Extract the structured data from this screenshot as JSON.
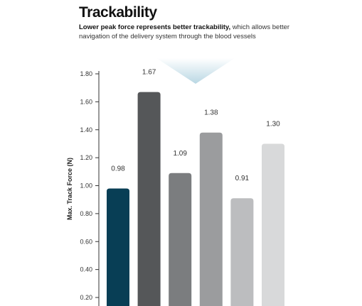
{
  "header": {
    "title": "Trackability",
    "subtitle_bold": "Lower peak force represents better trackability,",
    "subtitle_rest": " which allows better navigation of the delivery system through the blood vessels"
  },
  "chart_data": {
    "type": "bar",
    "title": "Trackability",
    "ylabel": "Max. Track Force (N)",
    "ylim": [
      0.2,
      1.8
    ],
    "yticks": [
      "0.20",
      "0.40",
      "0.60",
      "0.80",
      "1.00",
      "1.20",
      "1.40",
      "1.60",
      "1.80"
    ],
    "values": [
      0.98,
      1.67,
      1.09,
      1.38,
      0.91,
      1.3
    ],
    "value_labels": [
      "0.98",
      "1.67",
      "1.09",
      "1.38",
      "0.91",
      "1.30"
    ],
    "colors": [
      "#083e55",
      "#555759",
      "#7b7d7f",
      "#9b9c9e",
      "#bcbdbf",
      "#d8d9da"
    ]
  }
}
